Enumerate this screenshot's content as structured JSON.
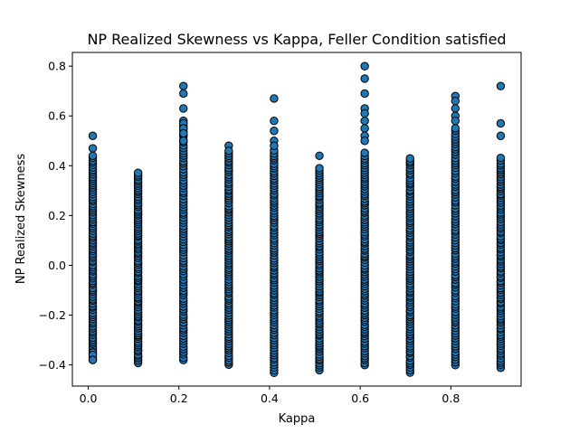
{
  "chart_data": {
    "type": "scatter",
    "title": "NP Realized Skewness vs Kappa, Feller Condition satisfied",
    "xlabel": "Kappa",
    "ylabel": "NP Realized Skewness",
    "xlim": [
      -0.035,
      0.955
    ],
    "ylim": [
      -0.485,
      0.855
    ],
    "xticks": [
      0.0,
      0.2,
      0.4,
      0.6,
      0.8
    ],
    "xtick_labels": [
      "0.0",
      "0.2",
      "0.4",
      "0.6",
      "0.8"
    ],
    "yticks": [
      -0.4,
      -0.2,
      0.0,
      0.2,
      0.4,
      0.6,
      0.8
    ],
    "ytick_labels": [
      "−0.4",
      "−0.2",
      "0.0",
      "0.2",
      "0.4",
      "0.6",
      "0.8"
    ],
    "grid": false,
    "marker_color": "#1f77b4",
    "marker_edge": "#000000",
    "columns": [
      {
        "x": 0.01,
        "min": -0.38,
        "max": 0.43,
        "extra": [
          0.52,
          0.47,
          0.44,
          -0.35,
          -0.36,
          -0.38
        ]
      },
      {
        "x": 0.11,
        "min": -0.39,
        "max": 0.37,
        "extra": []
      },
      {
        "x": 0.21,
        "min": -0.38,
        "max": 0.58,
        "extra": [
          0.72,
          0.69,
          0.63,
          0.57,
          0.55,
          0.53,
          0.5
        ]
      },
      {
        "x": 0.31,
        "min": -0.4,
        "max": 0.45,
        "extra": [
          0.48,
          0.46
        ]
      },
      {
        "x": 0.41,
        "min": -0.43,
        "max": 0.46,
        "extra": [
          0.67,
          0.58,
          0.54,
          0.5,
          0.48
        ]
      },
      {
        "x": 0.51,
        "min": -0.42,
        "max": 0.39,
        "extra": [
          0.44
        ]
      },
      {
        "x": 0.61,
        "min": -0.4,
        "max": 0.45,
        "extra": [
          0.8,
          0.75,
          0.69,
          0.63,
          0.61,
          0.58,
          0.55,
          0.52,
          0.5
        ]
      },
      {
        "x": 0.71,
        "min": -0.43,
        "max": 0.43,
        "extra": []
      },
      {
        "x": 0.81,
        "min": -0.4,
        "max": 0.55,
        "extra": [
          0.68,
          0.66,
          0.63,
          0.6,
          0.58
        ]
      },
      {
        "x": 0.91,
        "min": -0.41,
        "max": 0.43,
        "extra": [
          0.72,
          0.57,
          0.52
        ]
      }
    ]
  }
}
